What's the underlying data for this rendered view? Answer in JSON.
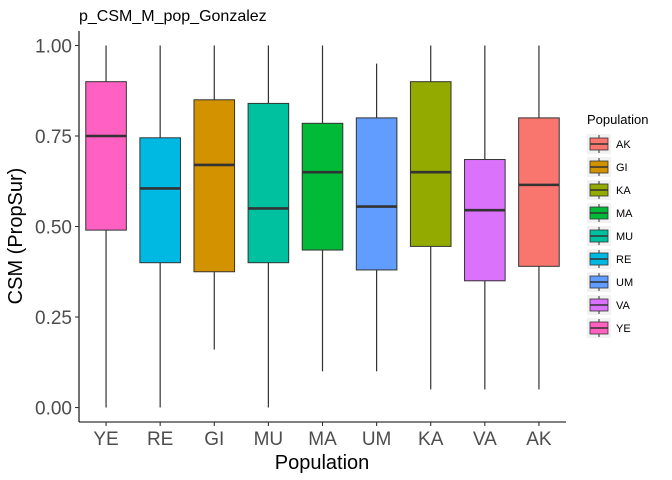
{
  "chart_data": {
    "type": "boxplot",
    "title": "p_CSM_M_pop_Gonzalez",
    "xlabel": "Population",
    "ylabel": "CSM (PropSur)",
    "ylim": [
      -0.04,
      1.04
    ],
    "yticks": [
      0.0,
      0.25,
      0.5,
      0.75,
      1.0
    ],
    "ytick_labels": [
      "0.00",
      "0.25",
      "0.50",
      "0.75",
      "1.00"
    ],
    "categories": [
      "YE",
      "RE",
      "GI",
      "MU",
      "MA",
      "UM",
      "KA",
      "VA",
      "AK"
    ],
    "boxes": [
      {
        "category": "YE",
        "min": 0.0,
        "q1": 0.49,
        "median": 0.75,
        "q3": 0.9,
        "max": 1.0
      },
      {
        "category": "RE",
        "min": 0.0,
        "q1": 0.4,
        "median": 0.605,
        "q3": 0.745,
        "max": 1.0
      },
      {
        "category": "GI",
        "min": 0.16,
        "q1": 0.375,
        "median": 0.67,
        "q3": 0.85,
        "max": 1.0
      },
      {
        "category": "MU",
        "min": 0.0,
        "q1": 0.4,
        "median": 0.55,
        "q3": 0.84,
        "max": 1.0
      },
      {
        "category": "MA",
        "min": 0.1,
        "q1": 0.435,
        "median": 0.65,
        "q3": 0.785,
        "max": 1.0
      },
      {
        "category": "UM",
        "min": 0.1,
        "q1": 0.38,
        "median": 0.555,
        "q3": 0.8,
        "max": 0.95
      },
      {
        "category": "KA",
        "min": 0.05,
        "q1": 0.445,
        "median": 0.65,
        "q3": 0.9,
        "max": 1.0
      },
      {
        "category": "VA",
        "min": 0.05,
        "q1": 0.35,
        "median": 0.545,
        "q3": 0.685,
        "max": 1.0
      },
      {
        "category": "AK",
        "min": 0.05,
        "q1": 0.39,
        "median": 0.615,
        "q3": 0.8,
        "max": 1.0
      }
    ],
    "colors": {
      "AK": "#F8766D",
      "GI": "#D39200",
      "KA": "#93AA00",
      "MA": "#00BA38",
      "MU": "#00C19F",
      "RE": "#00B9E3",
      "UM": "#619CFF",
      "VA": "#DB72FB",
      "YE": "#FF61C3"
    },
    "legend": {
      "title": "Population",
      "placement": "right",
      "entries": [
        "AK",
        "GI",
        "KA",
        "MA",
        "MU",
        "RE",
        "UM",
        "VA",
        "YE"
      ]
    },
    "grid": false
  }
}
